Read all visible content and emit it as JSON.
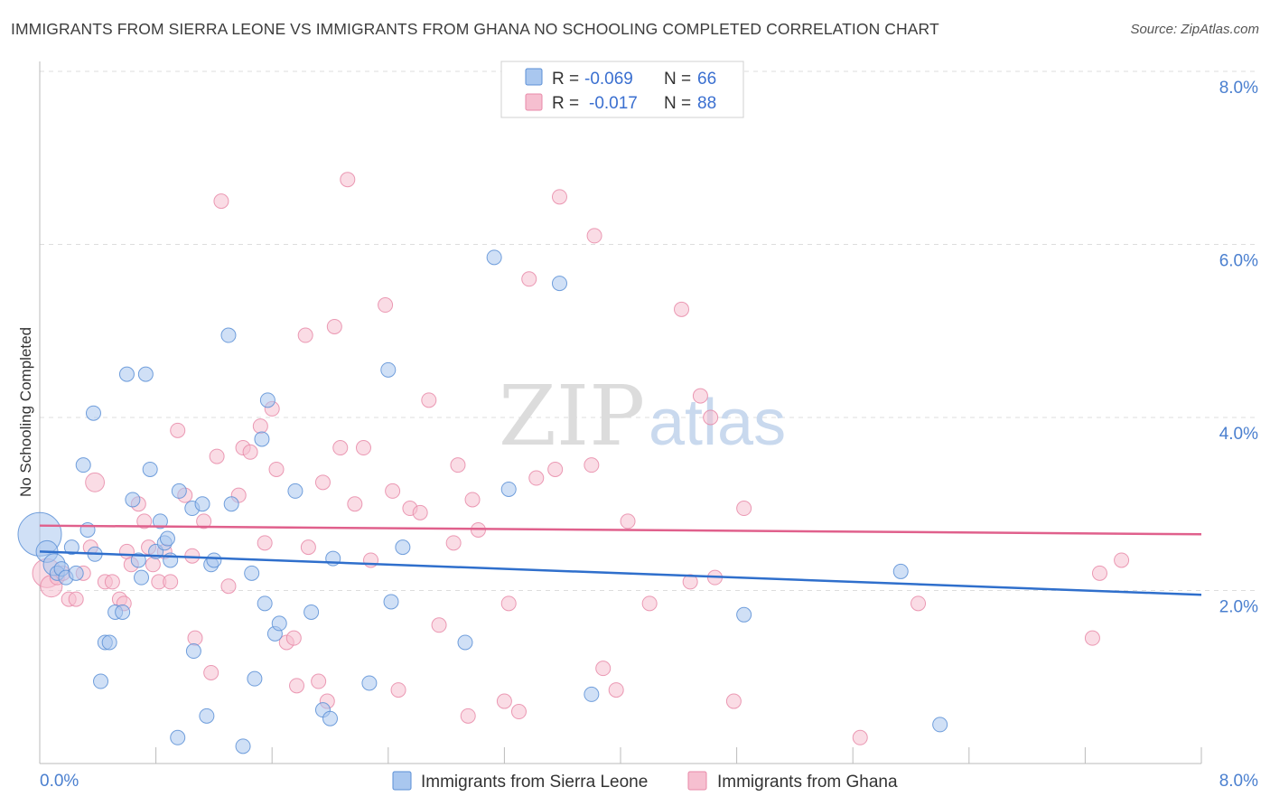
{
  "header": {
    "title": "IMMIGRANTS FROM SIERRA LEONE VS IMMIGRANTS FROM GHANA NO SCHOOLING COMPLETED CORRELATION CHART",
    "source": "Source: ZipAtlas.com"
  },
  "watermark": {
    "zip": "ZIP",
    "atlas": "atlas"
  },
  "legend": {
    "rows": [
      {
        "r_label": "R =",
        "r_value": "-0.069",
        "n_label": "N =",
        "n_value": "66"
      },
      {
        "r_label": "R =",
        "r_value": "-0.017",
        "n_label": "N =",
        "n_value": "88"
      }
    ]
  },
  "colors": {
    "series_a_fill": "#a9c7ef",
    "series_a_stroke": "#5b8fd6",
    "series_a_line": "#2f6fcc",
    "series_b_fill": "#f6bfd0",
    "series_b_stroke": "#e88aa8",
    "series_b_line": "#e0608c",
    "grid": "#dddddd",
    "axis_text": "#4a7fcf"
  },
  "chart_data": {
    "type": "scatter",
    "title": "IMMIGRANTS FROM SIERRA LEONE VS IMMIGRANTS FROM GHANA NO SCHOOLING COMPLETED CORRELATION CHART",
    "xlabel": "",
    "ylabel": "No Schooling Completed",
    "xlim": [
      0,
      8
    ],
    "ylim": [
      0,
      8
    ],
    "x_ticks": [
      "0.0%",
      "8.0%"
    ],
    "y_ticks": [
      "2.0%",
      "4.0%",
      "6.0%",
      "8.0%"
    ],
    "grid": true,
    "legend_placement": "top-center and bottom",
    "series": [
      {
        "name": "Immigrants from Sierra Leone",
        "r": -0.069,
        "n": 66,
        "trend": [
          [
            0,
            2.45
          ],
          [
            8,
            1.95
          ]
        ],
        "points": [
          [
            0.0,
            2.65,
            3
          ],
          [
            0.05,
            2.45,
            1.5
          ],
          [
            0.1,
            2.3,
            1.5
          ],
          [
            0.12,
            2.2,
            1
          ],
          [
            0.15,
            2.25,
            1
          ],
          [
            0.18,
            2.15,
            1
          ],
          [
            0.22,
            2.5,
            1
          ],
          [
            0.25,
            2.2,
            1
          ],
          [
            0.3,
            3.45,
            1
          ],
          [
            0.33,
            2.7,
            1
          ],
          [
            0.37,
            4.05,
            1
          ],
          [
            0.38,
            2.42,
            1
          ],
          [
            0.42,
            0.95,
            1
          ],
          [
            0.45,
            1.4,
            1
          ],
          [
            0.48,
            1.4,
            1
          ],
          [
            0.52,
            1.75,
            1
          ],
          [
            0.57,
            1.75,
            1
          ],
          [
            0.6,
            4.5,
            1
          ],
          [
            0.64,
            3.05,
            1
          ],
          [
            0.68,
            2.35,
            1
          ],
          [
            0.7,
            2.15,
            1
          ],
          [
            0.73,
            4.5,
            1
          ],
          [
            0.76,
            3.4,
            1
          ],
          [
            0.8,
            2.45,
            1
          ],
          [
            0.83,
            2.8,
            1
          ],
          [
            0.86,
            2.55,
            1
          ],
          [
            0.88,
            2.6,
            1
          ],
          [
            0.9,
            2.35,
            1
          ],
          [
            0.95,
            0.3,
            1
          ],
          [
            0.96,
            3.15,
            1
          ],
          [
            1.05,
            2.95,
            1
          ],
          [
            1.06,
            1.3,
            1
          ],
          [
            1.12,
            3.0,
            1
          ],
          [
            1.15,
            0.55,
            1
          ],
          [
            1.18,
            2.3,
            1
          ],
          [
            1.2,
            2.35,
            1
          ],
          [
            1.3,
            4.95,
            1
          ],
          [
            1.32,
            3.0,
            1
          ],
          [
            1.4,
            0.2,
            1
          ],
          [
            1.46,
            2.2,
            1
          ],
          [
            1.48,
            0.98,
            1
          ],
          [
            1.53,
            3.75,
            1
          ],
          [
            1.55,
            1.85,
            1
          ],
          [
            1.57,
            4.2,
            1
          ],
          [
            1.62,
            1.5,
            1
          ],
          [
            1.65,
            1.62,
            1
          ],
          [
            1.76,
            3.15,
            1
          ],
          [
            1.87,
            1.75,
            1
          ],
          [
            1.95,
            0.62,
            1
          ],
          [
            2.0,
            0.52,
            1
          ],
          [
            2.02,
            2.37,
            1
          ],
          [
            2.27,
            0.93,
            1
          ],
          [
            2.4,
            4.55,
            1
          ],
          [
            2.42,
            1.87,
            1
          ],
          [
            2.5,
            2.5,
            1
          ],
          [
            2.93,
            1.4,
            1
          ],
          [
            3.13,
            5.85,
            1
          ],
          [
            3.23,
            3.17,
            1
          ],
          [
            3.58,
            5.55,
            1
          ],
          [
            3.8,
            0.8,
            1
          ],
          [
            4.85,
            1.72,
            1
          ],
          [
            5.93,
            2.22,
            1
          ],
          [
            6.2,
            0.45,
            1
          ]
        ]
      },
      {
        "name": "Immigrants from Ghana",
        "r": -0.017,
        "n": 88,
        "trend": [
          [
            0,
            2.75
          ],
          [
            8,
            2.65
          ]
        ],
        "points": [
          [
            0.05,
            2.2,
            2
          ],
          [
            0.08,
            2.05,
            1.5
          ],
          [
            0.12,
            2.15,
            1
          ],
          [
            0.16,
            2.2,
            1
          ],
          [
            0.2,
            1.9,
            1
          ],
          [
            0.25,
            1.9,
            1
          ],
          [
            0.3,
            2.2,
            1
          ],
          [
            0.35,
            2.5,
            1
          ],
          [
            0.38,
            3.25,
            1.3
          ],
          [
            0.45,
            2.1,
            1
          ],
          [
            0.5,
            2.1,
            1
          ],
          [
            0.55,
            1.9,
            1
          ],
          [
            0.58,
            1.85,
            1
          ],
          [
            0.6,
            2.45,
            1
          ],
          [
            0.63,
            2.3,
            1
          ],
          [
            0.68,
            3.0,
            1
          ],
          [
            0.72,
            2.8,
            1
          ],
          [
            0.75,
            2.5,
            1
          ],
          [
            0.78,
            2.3,
            1
          ],
          [
            0.82,
            2.1,
            1
          ],
          [
            0.86,
            2.45,
            1
          ],
          [
            0.9,
            2.1,
            1
          ],
          [
            0.95,
            3.85,
            1
          ],
          [
            1.0,
            3.1,
            1
          ],
          [
            1.05,
            2.4,
            1
          ],
          [
            1.07,
            1.45,
            1
          ],
          [
            1.13,
            2.8,
            1
          ],
          [
            1.18,
            1.05,
            1
          ],
          [
            1.22,
            3.55,
            1
          ],
          [
            1.25,
            6.5,
            1
          ],
          [
            1.3,
            2.05,
            1
          ],
          [
            1.37,
            3.1,
            1
          ],
          [
            1.4,
            3.65,
            1
          ],
          [
            1.45,
            3.6,
            1
          ],
          [
            1.52,
            3.9,
            1
          ],
          [
            1.55,
            2.55,
            1
          ],
          [
            1.6,
            4.1,
            1
          ],
          [
            1.63,
            3.4,
            1
          ],
          [
            1.7,
            1.4,
            1
          ],
          [
            1.75,
            1.45,
            1
          ],
          [
            1.77,
            0.9,
            1
          ],
          [
            1.83,
            4.95,
            1
          ],
          [
            1.85,
            2.5,
            1
          ],
          [
            1.92,
            0.95,
            1
          ],
          [
            1.95,
            3.25,
            1
          ],
          [
            1.98,
            0.72,
            1
          ],
          [
            2.03,
            5.05,
            1
          ],
          [
            2.07,
            3.65,
            1
          ],
          [
            2.12,
            6.75,
            1
          ],
          [
            2.17,
            3.0,
            1
          ],
          [
            2.23,
            3.65,
            1
          ],
          [
            2.28,
            2.35,
            1
          ],
          [
            2.38,
            5.3,
            1
          ],
          [
            2.43,
            3.15,
            1
          ],
          [
            2.47,
            0.85,
            1
          ],
          [
            2.55,
            2.95,
            1
          ],
          [
            2.62,
            2.9,
            1
          ],
          [
            2.68,
            4.2,
            1
          ],
          [
            2.75,
            1.6,
            1
          ],
          [
            2.85,
            2.55,
            1
          ],
          [
            2.88,
            3.45,
            1
          ],
          [
            2.95,
            0.55,
            1
          ],
          [
            2.98,
            3.05,
            1
          ],
          [
            3.02,
            2.7,
            1
          ],
          [
            3.2,
            0.72,
            1
          ],
          [
            3.23,
            1.85,
            1
          ],
          [
            3.3,
            0.6,
            1
          ],
          [
            3.37,
            5.6,
            1
          ],
          [
            3.42,
            3.3,
            1
          ],
          [
            3.55,
            3.4,
            1
          ],
          [
            3.58,
            6.55,
            1
          ],
          [
            3.8,
            3.45,
            1
          ],
          [
            3.82,
            6.1,
            1
          ],
          [
            3.88,
            1.1,
            1
          ],
          [
            3.97,
            0.85,
            1
          ],
          [
            4.05,
            2.8,
            1
          ],
          [
            4.2,
            1.85,
            1
          ],
          [
            4.42,
            5.25,
            1
          ],
          [
            4.48,
            2.1,
            1
          ],
          [
            4.55,
            4.25,
            1
          ],
          [
            4.62,
            4.0,
            1
          ],
          [
            4.65,
            2.15,
            1
          ],
          [
            4.78,
            0.72,
            1
          ],
          [
            4.85,
            2.95,
            1
          ],
          [
            5.65,
            0.3,
            1
          ],
          [
            6.05,
            1.85,
            1
          ],
          [
            7.25,
            1.45,
            1
          ],
          [
            7.3,
            2.2,
            1
          ],
          [
            7.45,
            2.35,
            1
          ]
        ]
      }
    ]
  }
}
